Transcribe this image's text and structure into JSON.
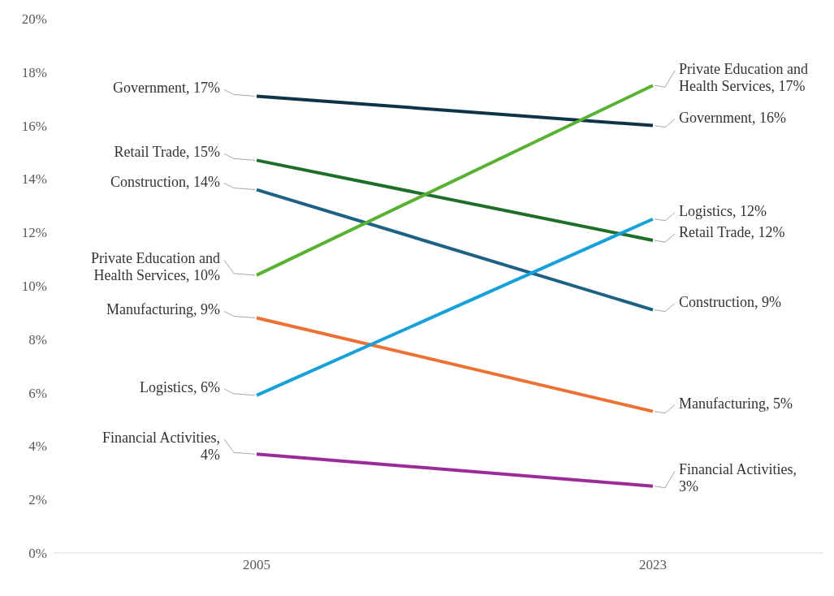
{
  "chart_data": {
    "type": "line",
    "categories": [
      "2005",
      "2023"
    ],
    "series": [
      {
        "color": "#0d3349",
        "values": [
          17.1,
          16.0
        ],
        "value_labels": [
          "Government, 17%",
          "Government, 16%"
        ]
      },
      {
        "color": "#1f6e28",
        "values": [
          14.7,
          11.7
        ],
        "value_labels": [
          "Retail Trade, 15%",
          "Retail Trade, 12%"
        ]
      },
      {
        "color": "#1d6185",
        "values": [
          13.6,
          9.1
        ],
        "value_labels": [
          "Construction, 14%",
          "Construction, 9%"
        ]
      },
      {
        "color": "#58b131",
        "values": [
          10.4,
          17.5
        ],
        "value_labels": [
          "Private Education and Health Services, 10%",
          "Private Education and Health Services, 17%"
        ]
      },
      {
        "color": "#ec7133",
        "values": [
          8.8,
          5.3
        ],
        "value_labels": [
          "Manufacturing, 9%",
          "Manufacturing, 5%"
        ]
      },
      {
        "color": "#17a1d9",
        "values": [
          5.9,
          12.5
        ],
        "value_labels": [
          "Logistics, 6%",
          "Logistics, 12%"
        ]
      },
      {
        "color": "#9b2b96",
        "values": [
          3.7,
          2.5
        ],
        "value_labels": [
          "Financial Activities, 4%",
          "Financial Activities, 3%"
        ]
      }
    ],
    "ylim": [
      0,
      20
    ],
    "yticks": [
      {
        "value": 0,
        "label": "0%"
      },
      {
        "value": 2,
        "label": "2%"
      },
      {
        "value": 4,
        "label": "4%"
      },
      {
        "value": 6,
        "label": "6%"
      },
      {
        "value": 8,
        "label": "8%"
      },
      {
        "value": 10,
        "label": "10%"
      },
      {
        "value": 12,
        "label": "12%"
      },
      {
        "value": 14,
        "label": "14%"
      },
      {
        "value": 16,
        "label": "16%"
      },
      {
        "value": 18,
        "label": "18%"
      },
      {
        "value": 20,
        "label": "20%"
      }
    ],
    "grid": false,
    "legend": false,
    "line_style": "solid"
  }
}
